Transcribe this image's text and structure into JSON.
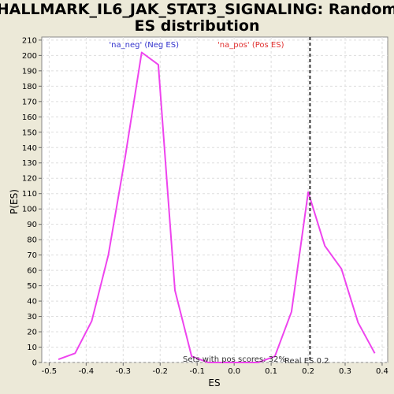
{
  "chart_data": {
    "type": "line",
    "title_line1": "HALLMARK_IL6_JAK_STAT3_SIGNALING: Random",
    "title_line2": "ES distribution",
    "xlabel": "ES",
    "ylabel": "P(ES)",
    "xlim": [
      -0.52,
      0.415
    ],
    "ylim": [
      0,
      212
    ],
    "xticks": [
      -0.5,
      -0.4,
      -0.3,
      -0.2,
      -0.1,
      0.0,
      0.1,
      0.2,
      0.3,
      0.4
    ],
    "yticks": [
      0,
      10,
      20,
      30,
      40,
      50,
      60,
      70,
      80,
      90,
      100,
      110,
      120,
      130,
      140,
      150,
      160,
      170,
      180,
      190,
      200,
      210
    ],
    "grid": true,
    "legend": {
      "placement": "top-center",
      "neg_label": "'na_neg' (Neg ES)",
      "pos_label": "'na_pos' (Pos ES)",
      "neg_color": "#3333cc",
      "pos_color": "#e0302f"
    },
    "line_color": "#ee44ee",
    "real_es_line_color": "#333333",
    "series": [
      {
        "x": [
          -0.475,
          -0.43,
          -0.385,
          -0.34,
          -0.295,
          -0.25,
          -0.205,
          -0.16,
          -0.115,
          -0.07,
          -0.025,
          0.02,
          0.065,
          0.11,
          0.155,
          0.2,
          0.245,
          0.29,
          0.335,
          0.38
        ],
        "y": [
          2,
          6,
          27,
          70,
          133,
          202,
          194,
          47,
          4,
          0,
          0,
          0,
          0,
          4,
          33,
          111,
          76,
          61,
          26,
          6
        ]
      }
    ],
    "real_es": 0.205,
    "annotations": {
      "pos_scores": "Sets with pos scores: 32%",
      "real_es": "Real ES 0.2"
    }
  }
}
